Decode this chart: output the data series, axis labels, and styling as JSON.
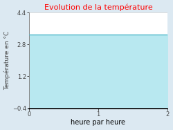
{
  "title": "Evolution de la température",
  "title_color": "#ff0000",
  "xlabel": "heure par heure",
  "ylabel": "Température en °C",
  "xlim": [
    0,
    2
  ],
  "ylim": [
    -0.4,
    4.4
  ],
  "xticks": [
    0,
    1,
    2
  ],
  "yticks": [
    -0.4,
    1.2,
    2.8,
    4.4
  ],
  "line_y": 3.3,
  "line_color": "#55bbcc",
  "fill_color": "#b8e8f0",
  "background_color": "#dce9f2",
  "plot_bg_color": "#ffffff",
  "grid_color": "#cccccc",
  "line_x_start": 0,
  "line_x_end": 2,
  "title_fontsize": 8,
  "label_fontsize": 7,
  "tick_fontsize": 6
}
